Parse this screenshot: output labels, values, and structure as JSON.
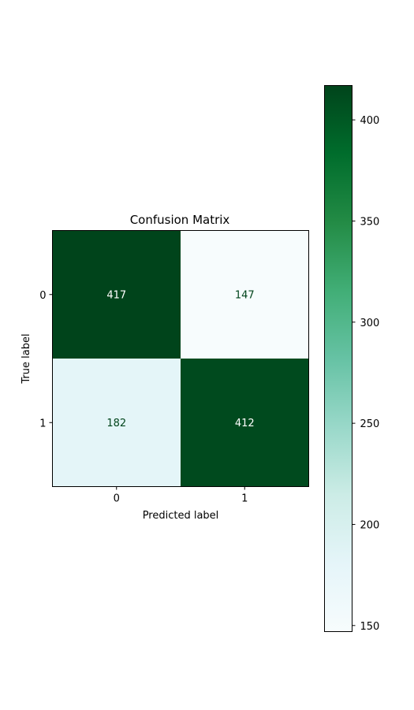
{
  "chart_data": {
    "type": "heatmap",
    "title": "Confusion Matrix",
    "xlabel": "Predicted label",
    "ylabel": "True label",
    "x_categories": [
      "0",
      "1"
    ],
    "y_categories": [
      "0",
      "1"
    ],
    "values": [
      [
        417,
        147
      ],
      [
        182,
        412
      ]
    ],
    "colormap": "BuGn",
    "colorbar": {
      "range": [
        147,
        417
      ],
      "ticks": [
        150,
        200,
        250,
        300,
        350,
        400
      ],
      "placement": "right"
    },
    "grid": false
  }
}
